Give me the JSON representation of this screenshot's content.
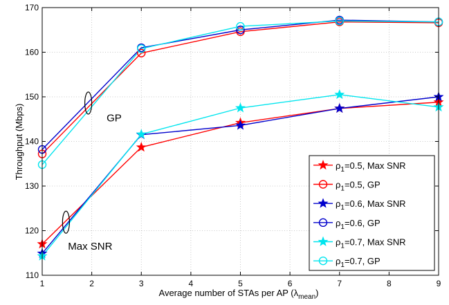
{
  "chart_data": {
    "type": "line",
    "title": "",
    "xlabel": "Average number of STAs per AP (λ",
    "xlabel_sub": "mean",
    "xlabel_close": ")",
    "ylabel": "Throughput (Mbps)",
    "xlim": [
      1,
      9
    ],
    "ylim": [
      110,
      170
    ],
    "xticks": [
      1,
      2,
      3,
      4,
      5,
      6,
      7,
      8,
      9
    ],
    "yticks": [
      110,
      120,
      130,
      140,
      150,
      160,
      170
    ],
    "grid": true,
    "legend_position": "bottom-right",
    "x": [
      1,
      3,
      5,
      7,
      9
    ],
    "series": [
      {
        "name": "ρ1=0.5, Max SNR",
        "rho": "ρ",
        "sub": "1",
        "rest": "=0.5, Max SNR",
        "marker": "star",
        "color": "#ff0000",
        "values": [
          117.0,
          138.7,
          144.2,
          147.4,
          148.8
        ]
      },
      {
        "name": "ρ1=0.5, GP",
        "rho": "ρ",
        "sub": "1",
        "rest": "=0.5, GP",
        "marker": "circle",
        "color": "#ff0000",
        "values": [
          137.2,
          159.8,
          164.6,
          166.8,
          166.6
        ]
      },
      {
        "name": "ρ1=0.6, Max SNR",
        "rho": "ρ",
        "sub": "1",
        "rest": "=0.6, Max SNR",
        "marker": "star",
        "color": "#0000cc",
        "values": [
          114.9,
          141.5,
          143.6,
          147.4,
          150.0
        ]
      },
      {
        "name": "ρ1=0.6, GP",
        "rho": "ρ",
        "sub": "1",
        "rest": "=0.6, GP",
        "marker": "circle",
        "color": "#0000cc",
        "values": [
          138.2,
          161.0,
          165.0,
          167.2,
          166.8
        ]
      },
      {
        "name": "ρ1=0.7, Max SNR",
        "rho": "ρ",
        "sub": "1",
        "rest": "=0.7, Max SNR",
        "marker": "star",
        "color": "#00e5ee",
        "values": [
          114.3,
          141.6,
          147.5,
          150.5,
          147.7
        ]
      },
      {
        "name": "ρ1=0.7, GP",
        "rho": "ρ",
        "sub": "1",
        "rest": "=0.7, GP",
        "marker": "circle",
        "color": "#00e5ee",
        "values": [
          134.8,
          160.8,
          165.8,
          167.0,
          166.8
        ]
      }
    ],
    "annotations": [
      {
        "text": "GP",
        "x": 2.3,
        "y": 147.6,
        "ellipse_x": 1.93,
        "ellipse_y": 148.6
      },
      {
        "text": "Max SNR",
        "x": 1.52,
        "y": 118.8,
        "ellipse_x": 1.48,
        "ellipse_y": 121.9
      }
    ]
  }
}
